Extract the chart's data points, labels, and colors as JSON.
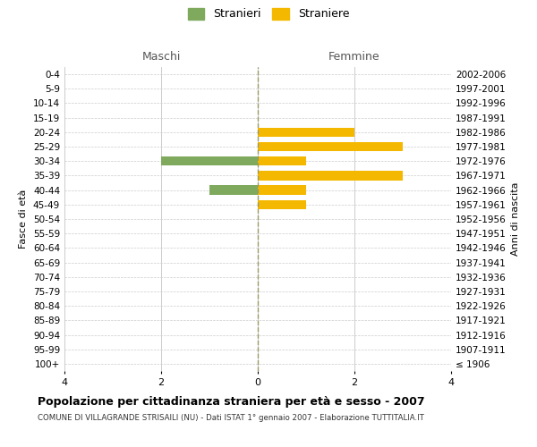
{
  "age_groups": [
    "100+",
    "95-99",
    "90-94",
    "85-89",
    "80-84",
    "75-79",
    "70-74",
    "65-69",
    "60-64",
    "55-59",
    "50-54",
    "45-49",
    "40-44",
    "35-39",
    "30-34",
    "25-29",
    "20-24",
    "15-19",
    "10-14",
    "5-9",
    "0-4"
  ],
  "birth_years": [
    "≤ 1906",
    "1907-1911",
    "1912-1916",
    "1917-1921",
    "1922-1926",
    "1927-1931",
    "1932-1936",
    "1937-1941",
    "1942-1946",
    "1947-1951",
    "1952-1956",
    "1957-1961",
    "1962-1966",
    "1967-1971",
    "1972-1976",
    "1977-1981",
    "1982-1986",
    "1987-1991",
    "1992-1996",
    "1997-2001",
    "2002-2006"
  ],
  "maschi": [
    0,
    0,
    0,
    0,
    0,
    0,
    0,
    0,
    0,
    0,
    0,
    0,
    -1,
    0,
    -2,
    0,
    0,
    0,
    0,
    0,
    0
  ],
  "femmine": [
    0,
    0,
    0,
    0,
    0,
    0,
    0,
    0,
    0,
    0,
    0,
    1,
    1,
    3,
    1,
    3,
    2,
    0,
    0,
    0,
    0
  ],
  "male_color": "#7faa5e",
  "female_color": "#f5b800",
  "bg_color": "#ffffff",
  "grid_color": "#cccccc",
  "center_line_color": "#999966",
  "xlim": 4,
  "title": "Popolazione per cittadinanza straniera per età e sesso - 2007",
  "subtitle": "COMUNE DI VILLAGRANDE STRISAILI (NU) - Dati ISTAT 1° gennaio 2007 - Elaborazione TUTTITALIA.IT",
  "xlabel_left": "Maschi",
  "xlabel_right": "Femmine",
  "ylabel_left": "Fasce di età",
  "ylabel_right": "Anni di nascita",
  "legend_male": "Stranieri",
  "legend_female": "Straniere",
  "xticks": [
    -4,
    -2,
    0,
    2,
    4
  ],
  "xticklabels": [
    "4",
    "2",
    "0",
    "2",
    "4"
  ]
}
